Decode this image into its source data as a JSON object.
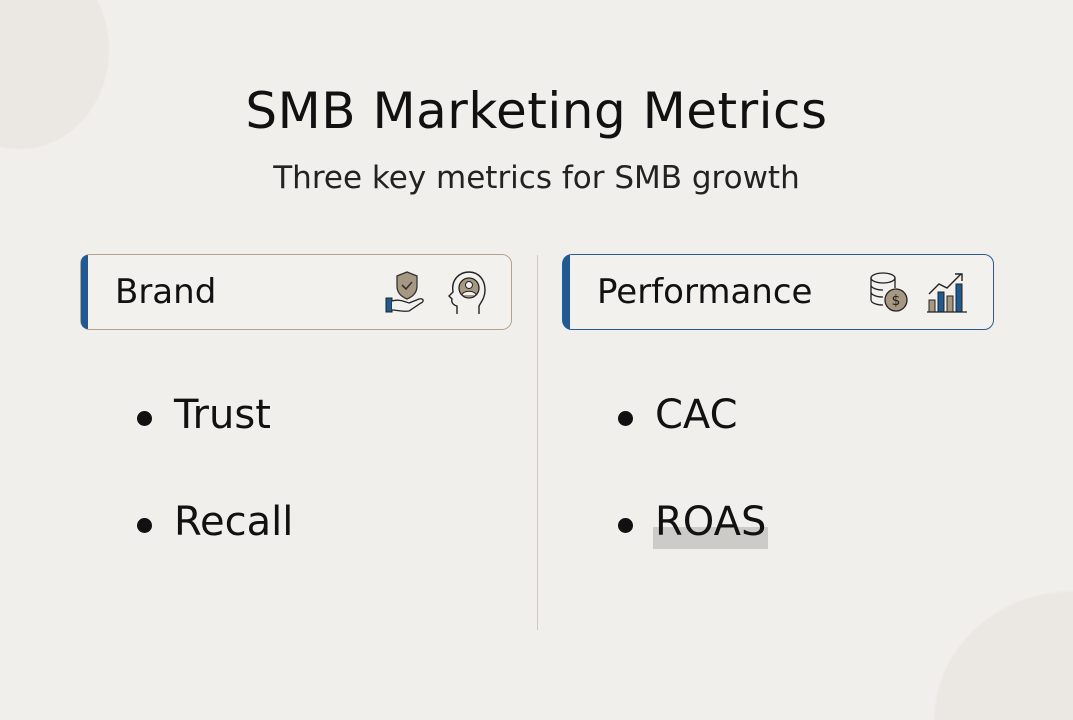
{
  "title": "SMB Marketing Metrics",
  "subtitle": "Three key metrics for SMB growth",
  "colors": {
    "accent": "#1f5a93",
    "brand_border": "#b3a28c",
    "icon_tan": "#a69882",
    "background": "#f1efeb"
  },
  "columns": [
    {
      "label": "Brand",
      "icons": [
        "hand-shield-check-icon",
        "head-person-icon"
      ],
      "items": [
        "Trust",
        "Recall"
      ]
    },
    {
      "label": "Performance",
      "icons": [
        "coins-dollar-icon",
        "bar-chart-growth-icon"
      ],
      "items": [
        "CAC",
        "ROAS"
      ]
    }
  ]
}
